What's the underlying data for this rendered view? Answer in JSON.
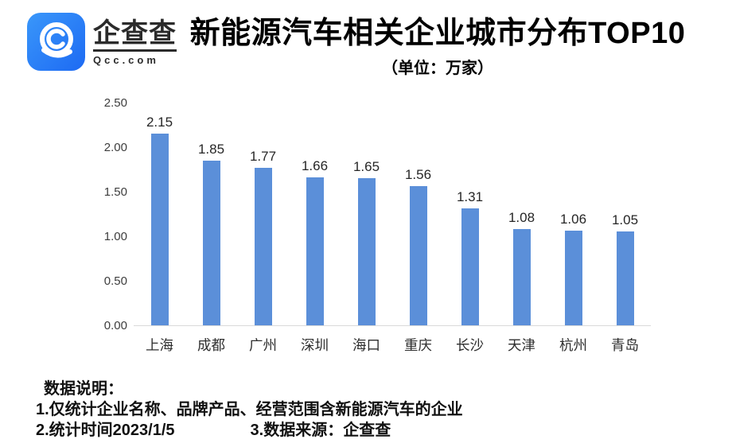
{
  "logo": {
    "brand_cn": "企查查",
    "brand_domain": "Qcc.com",
    "brand_color": "#2A7DF5"
  },
  "header": {
    "title": "新能源汽车相关企业城市分布TOP10",
    "subtitle": "（单位：万家）"
  },
  "chart_data": {
    "type": "bar",
    "title": "新能源汽车相关企业城市分布TOP10",
    "unit_label": "（单位：万家）",
    "categories": [
      "上海",
      "成都",
      "广州",
      "深圳",
      "海口",
      "重庆",
      "长沙",
      "天津",
      "杭州",
      "青岛"
    ],
    "values": [
      2.15,
      1.85,
      1.77,
      1.66,
      1.65,
      1.56,
      1.31,
      1.08,
      1.06,
      1.05
    ],
    "value_labels": [
      "2.15",
      "1.85",
      "1.77",
      "1.66",
      "1.65",
      "1.56",
      "1.31",
      "1.08",
      "1.06",
      "1.05"
    ],
    "xlabel": "",
    "ylabel": "",
    "ylim": [
      0,
      2.5
    ],
    "yticks": [
      "2.50",
      "2.00",
      "1.50",
      "1.00",
      "0.50",
      "0.00"
    ],
    "grid": false,
    "legend": "none",
    "bar_color": "#5B8FD9",
    "axis_line_color": "#D9D9D9"
  },
  "footer": {
    "heading": "数据说明：",
    "note1": "1.仅统计企业名称、品牌产品、经营范围含新能源汽车的企业",
    "note2": "2.统计时间2023/1/5",
    "note3": "3.数据来源：企查查"
  }
}
